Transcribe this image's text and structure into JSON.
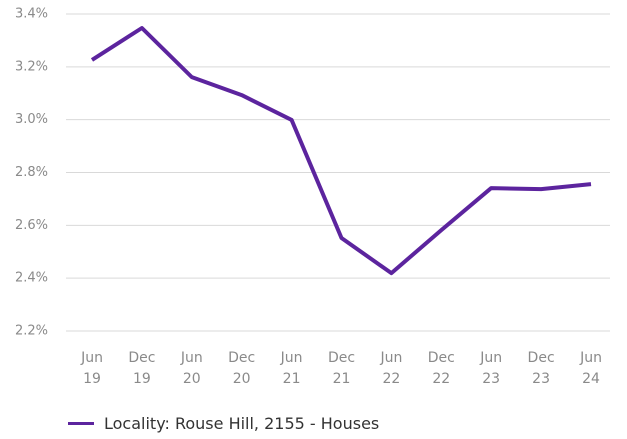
{
  "chart_data": {
    "type": "line",
    "categories": [
      "Jun 19",
      "Dec 19",
      "Jun 20",
      "Dec 20",
      "Jun 21",
      "Dec 21",
      "Jun 22",
      "Dec 22",
      "Jun 23",
      "Dec 23",
      "Jun 24"
    ],
    "series": [
      {
        "name": "Locality: Rouse Hill, 2155 - Houses",
        "color": "#5c249e",
        "values": [
          3.226,
          3.347,
          3.161,
          3.093,
          2.999,
          2.552,
          2.419,
          2.582,
          2.741,
          2.737,
          2.756
        ]
      }
    ],
    "ylim": [
      2.2,
      3.4
    ],
    "yticks": [
      {
        "value": 2.2,
        "label": "2.2%"
      },
      {
        "value": 2.4,
        "label": "2.4%"
      },
      {
        "value": 2.6,
        "label": "2.6%"
      },
      {
        "value": 2.8,
        "label": "2.8%"
      },
      {
        "value": 3.0,
        "label": "3.0%"
      },
      {
        "value": 3.2,
        "label": "3.2%"
      },
      {
        "value": 3.4,
        "label": "3.4%"
      }
    ],
    "grid": true,
    "legend": "bottom-left"
  }
}
